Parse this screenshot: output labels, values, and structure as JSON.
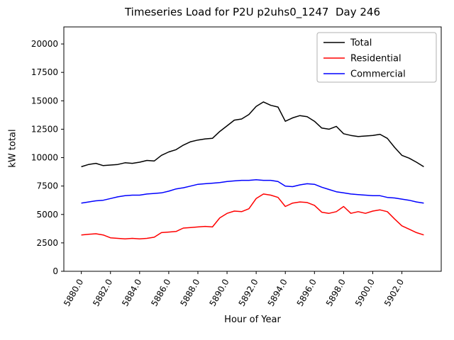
{
  "figure": {
    "title": "Timeseries Load for P2U p2uhs0_1247  Day 246",
    "xlabel": "Hour of Year",
    "ylabel": "kW total"
  },
  "chart_data": {
    "type": "line",
    "title": "Timeseries Load for P2U p2uhs0_1247  Day 246",
    "xlabel": "Hour of Year",
    "ylabel": "kW total",
    "grid": false,
    "xlim": [
      5878.8,
      5904.7
    ],
    "ylim": [
      0,
      21500
    ],
    "xticks": [
      5880,
      5882,
      5884,
      5886,
      5888,
      5890,
      5892,
      5894,
      5896,
      5898,
      5900,
      5902
    ],
    "xtick_labels": [
      "5880.0",
      "5882.0",
      "5884.0",
      "5886.0",
      "5888.0",
      "5890.0",
      "5892.0",
      "5894.0",
      "5896.0",
      "5898.0",
      "5900.0",
      "5902.0"
    ],
    "yticks": [
      0,
      2500,
      5000,
      7500,
      10000,
      12500,
      15000,
      17500,
      20000
    ],
    "ytick_labels": [
      "0",
      "2500",
      "5000",
      "7500",
      "10000",
      "12500",
      "15000",
      "17500",
      "20000"
    ],
    "legend": {
      "position": "upper right",
      "entries": [
        "Total",
        "Residential",
        "Commercial"
      ]
    },
    "x": [
      5880,
      5880.5,
      5881,
      5881.5,
      5882,
      5882.5,
      5883,
      5883.5,
      5884,
      5884.5,
      5885,
      5885.5,
      5886,
      5886.5,
      5887,
      5887.5,
      5888,
      5888.5,
      5889,
      5889.5,
      5890,
      5890.5,
      5891,
      5891.5,
      5892,
      5892.5,
      5893,
      5893.5,
      5894,
      5894.5,
      5895,
      5895.5,
      5896,
      5896.5,
      5897,
      5897.5,
      5898,
      5898.5,
      5899,
      5899.5,
      5900,
      5900.5,
      5901,
      5901.5,
      5902,
      5902.5,
      5903,
      5903.5
    ],
    "series": [
      {
        "name": "Total",
        "color": "#000000",
        "values": [
          9200,
          9400,
          9500,
          9300,
          9350,
          9400,
          9550,
          9500,
          9600,
          9750,
          9700,
          10200,
          10500,
          10700,
          11100,
          11400,
          11550,
          11650,
          11700,
          12300,
          12800,
          13300,
          13400,
          13800,
          14500,
          14900,
          14600,
          14450,
          13200,
          13500,
          13700,
          13600,
          13200,
          12600,
          12500,
          12750,
          12100,
          11950,
          11850,
          11900,
          11950,
          12050,
          11700,
          10900,
          10200,
          9950,
          9600,
          9200
        ]
      },
      {
        "name": "Residential",
        "color": "#ff0000",
        "values": [
          3200,
          3250,
          3300,
          3200,
          2950,
          2900,
          2850,
          2900,
          2850,
          2900,
          3000,
          3400,
          3450,
          3500,
          3800,
          3850,
          3900,
          3950,
          3900,
          4700,
          5100,
          5300,
          5250,
          5500,
          6400,
          6800,
          6700,
          6500,
          5700,
          6000,
          6100,
          6050,
          5800,
          5200,
          5100,
          5250,
          5700,
          5100,
          5250,
          5100,
          5300,
          5400,
          5250,
          4600,
          4000,
          3700,
          3400,
          3200
        ]
      },
      {
        "name": "Commercial",
        "color": "#0000ff",
        "values": [
          6000,
          6100,
          6200,
          6250,
          6400,
          6550,
          6650,
          6700,
          6700,
          6800,
          6850,
          6900,
          7050,
          7250,
          7350,
          7500,
          7650,
          7700,
          7750,
          7800,
          7900,
          7950,
          8000,
          8000,
          8050,
          8000,
          8000,
          7900,
          7500,
          7450,
          7600,
          7700,
          7650,
          7400,
          7200,
          7000,
          6900,
          6800,
          6750,
          6700,
          6650,
          6650,
          6500,
          6450,
          6350,
          6250,
          6100,
          6000
        ]
      }
    ]
  }
}
